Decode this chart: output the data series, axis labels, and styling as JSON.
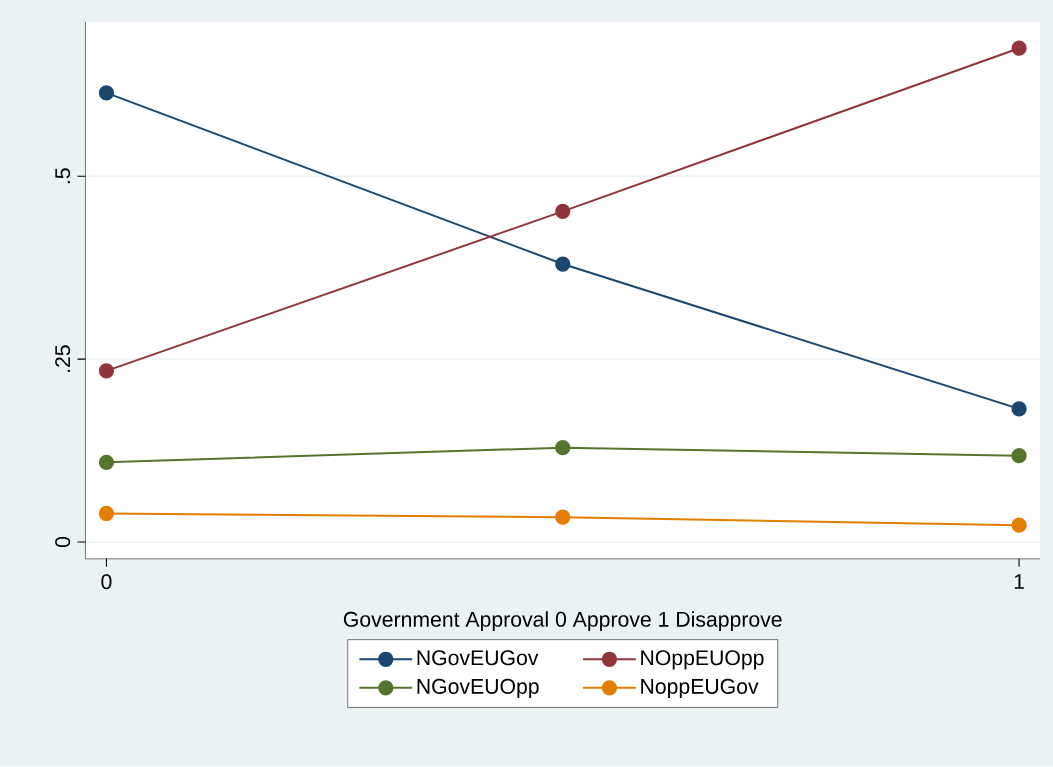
{
  "chart_data": {
    "type": "line",
    "xlabel": "Government Approval 0 Approve 1 Disapprove",
    "x": [
      0,
      0.5,
      1
    ],
    "series": [
      {
        "name": "NGovEUGov",
        "color": "#1a476f",
        "values": [
          0.614,
          0.38,
          0.182
        ]
      },
      {
        "name": "NOppEUOpp",
        "color": "#90353b",
        "values": [
          0.234,
          0.452,
          0.675
        ]
      },
      {
        "name": "NGovEUOpp",
        "color": "#55752f",
        "values": [
          0.109,
          0.129,
          0.118
        ]
      },
      {
        "name": "NoppEUGov",
        "color": "#e37e00",
        "values": [
          0.039,
          0.034,
          0.023
        ]
      }
    ],
    "xlim": [
      -0.023,
      1.023
    ],
    "ylim": [
      -0.023,
      0.711
    ],
    "xticks": [
      0,
      1
    ],
    "yticks": [
      0,
      {
        "value": 0.25,
        "label": ".25"
      },
      {
        "value": 0.5,
        "label": ".5"
      }
    ],
    "grid": "y",
    "legend": "bottom",
    "marker": "circle",
    "line_style": "solid"
  }
}
